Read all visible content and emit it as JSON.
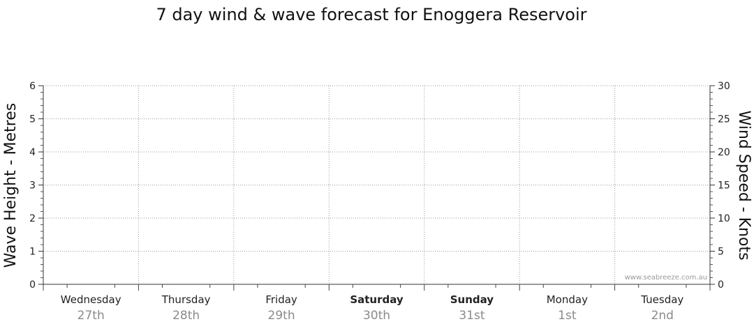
{
  "chart_data": {
    "type": "line",
    "title": "7 day wind & wave forecast for Enoggera Reservoir",
    "y_left": {
      "label": "Wave Height - Metres",
      "range": [
        0,
        6
      ],
      "ticks": [
        "0",
        "1",
        "2",
        "3",
        "4",
        "5",
        "6"
      ]
    },
    "y_right": {
      "label": "Wind Speed - Knots",
      "range": [
        0,
        30
      ],
      "ticks": [
        "0",
        "5",
        "10",
        "15",
        "20",
        "25",
        "30"
      ]
    },
    "x_days": [
      {
        "day": "Wednesday",
        "date": "27th",
        "weekend": false
      },
      {
        "day": "Thursday",
        "date": "28th",
        "weekend": false
      },
      {
        "day": "Friday",
        "date": "29th",
        "weekend": false
      },
      {
        "day": "Saturday",
        "date": "30th",
        "weekend": true
      },
      {
        "day": "Sunday",
        "date": "31st",
        "weekend": true
      },
      {
        "day": "Monday",
        "date": "1st",
        "weekend": false
      },
      {
        "day": "Tuesday",
        "date": "2nd",
        "weekend": false
      }
    ],
    "series": [],
    "grid": true,
    "watermark": "www.seabreeze.com.au"
  }
}
